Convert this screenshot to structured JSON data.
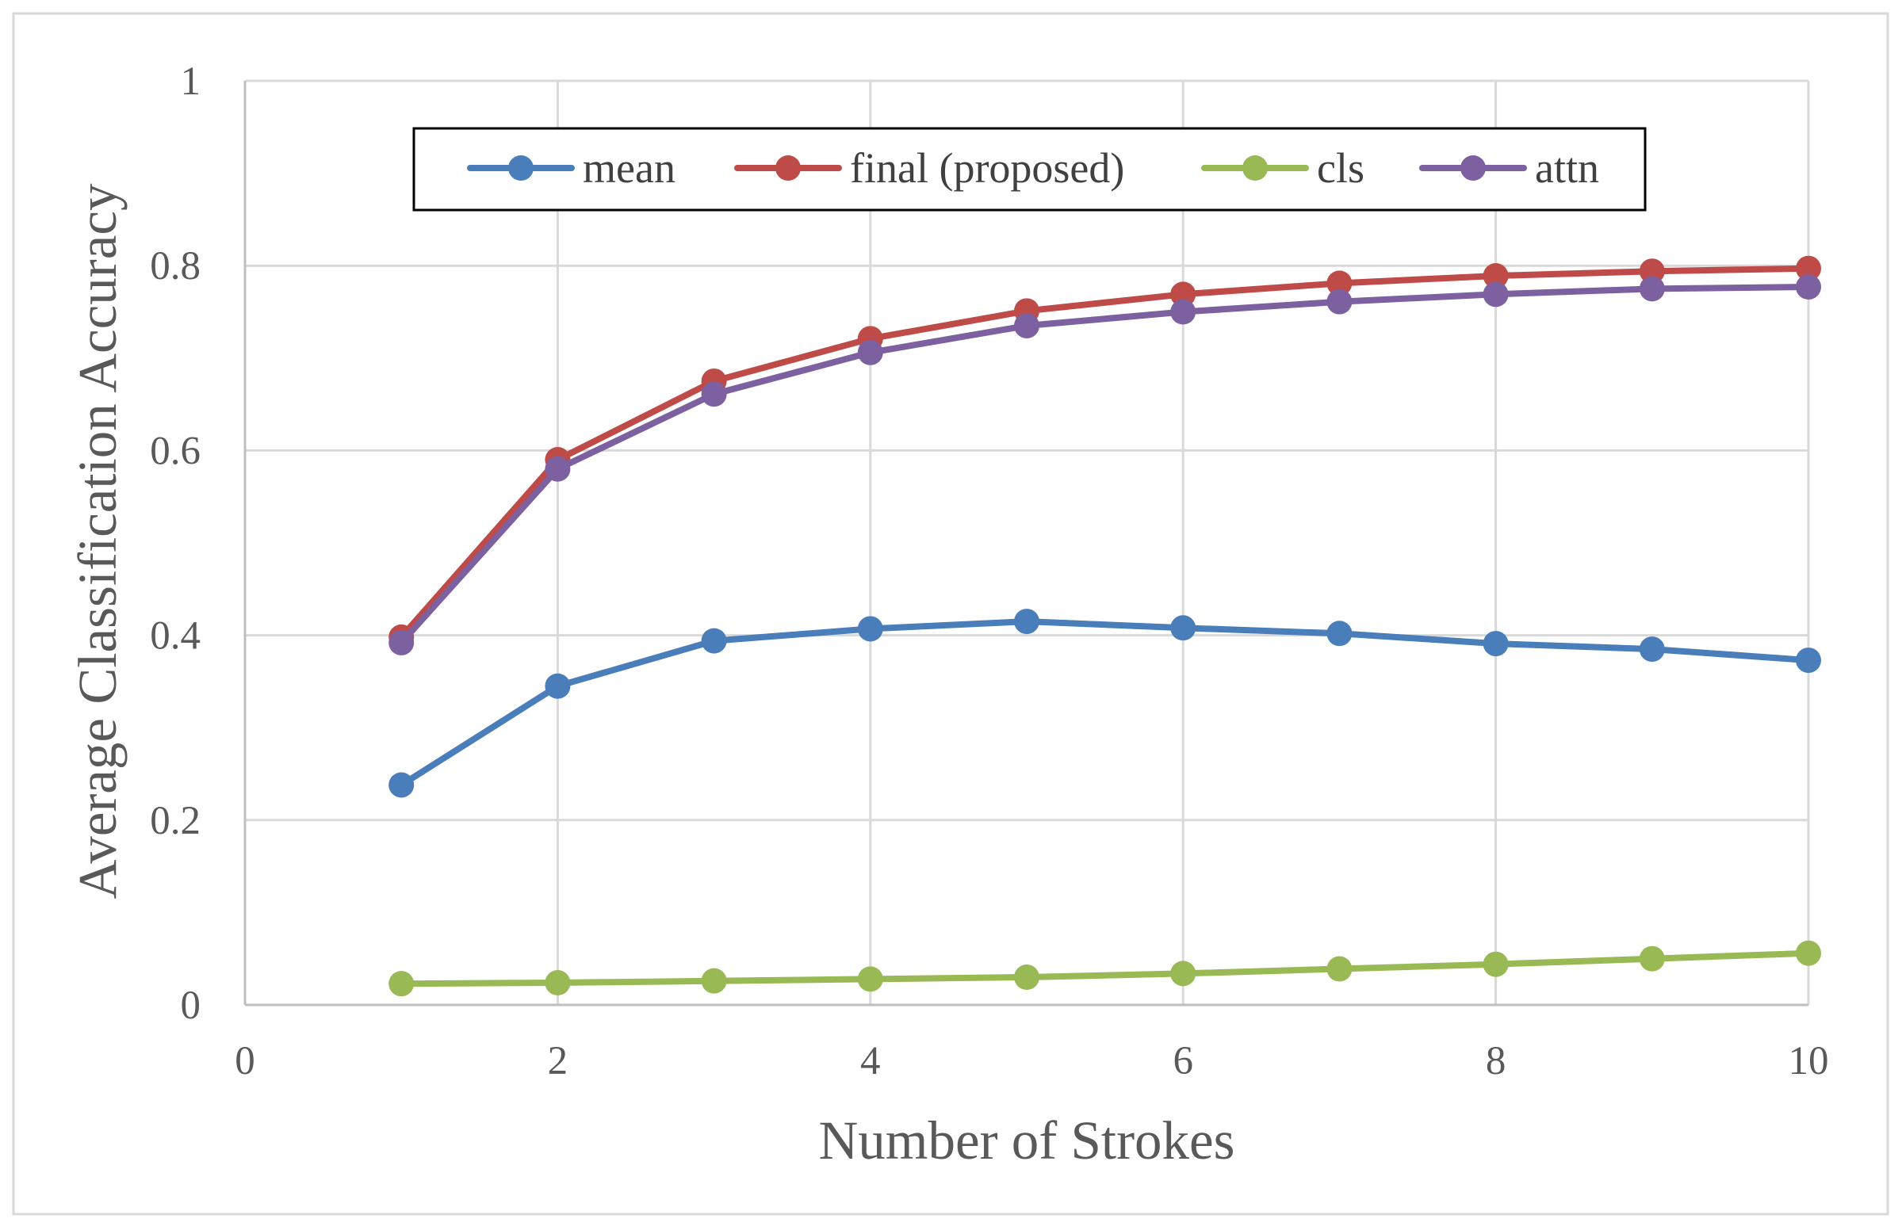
{
  "chart_data": {
    "type": "line",
    "xlabel": "Number of Strokes",
    "ylabel": "Average Classification Accuracy",
    "xlim": [
      0,
      10
    ],
    "ylim": [
      0,
      1
    ],
    "xticks": [
      0,
      2,
      4,
      6,
      8,
      10
    ],
    "xtick_labels": [
      "0",
      "2",
      "4",
      "6",
      "8",
      "10"
    ],
    "yticks": [
      0,
      0.2,
      0.4,
      0.6,
      0.8,
      1
    ],
    "ytick_labels": [
      "0",
      "0.2",
      "0.4",
      "0.6",
      "0.8",
      "1"
    ],
    "grid": true,
    "legend_position": "top",
    "x": [
      1,
      2,
      3,
      4,
      5,
      6,
      7,
      8,
      9,
      10
    ],
    "series": [
      {
        "name": "mean",
        "color": "#4a7ebb",
        "values": [
          0.238,
          0.345,
          0.394,
          0.407,
          0.415,
          0.408,
          0.402,
          0.391,
          0.385,
          0.373
        ]
      },
      {
        "name": "final (proposed)",
        "color": "#be4b48",
        "values": [
          0.398,
          0.59,
          0.675,
          0.721,
          0.751,
          0.769,
          0.781,
          0.789,
          0.794,
          0.797
        ]
      },
      {
        "name": "cls",
        "color": "#98b954",
        "values": [
          0.023,
          0.024,
          0.026,
          0.028,
          0.03,
          0.034,
          0.039,
          0.044,
          0.05,
          0.056
        ]
      },
      {
        "name": "attn",
        "color": "#7d60a0",
        "values": [
          0.392,
          0.58,
          0.661,
          0.706,
          0.735,
          0.75,
          0.761,
          0.769,
          0.775,
          0.777
        ]
      }
    ]
  }
}
